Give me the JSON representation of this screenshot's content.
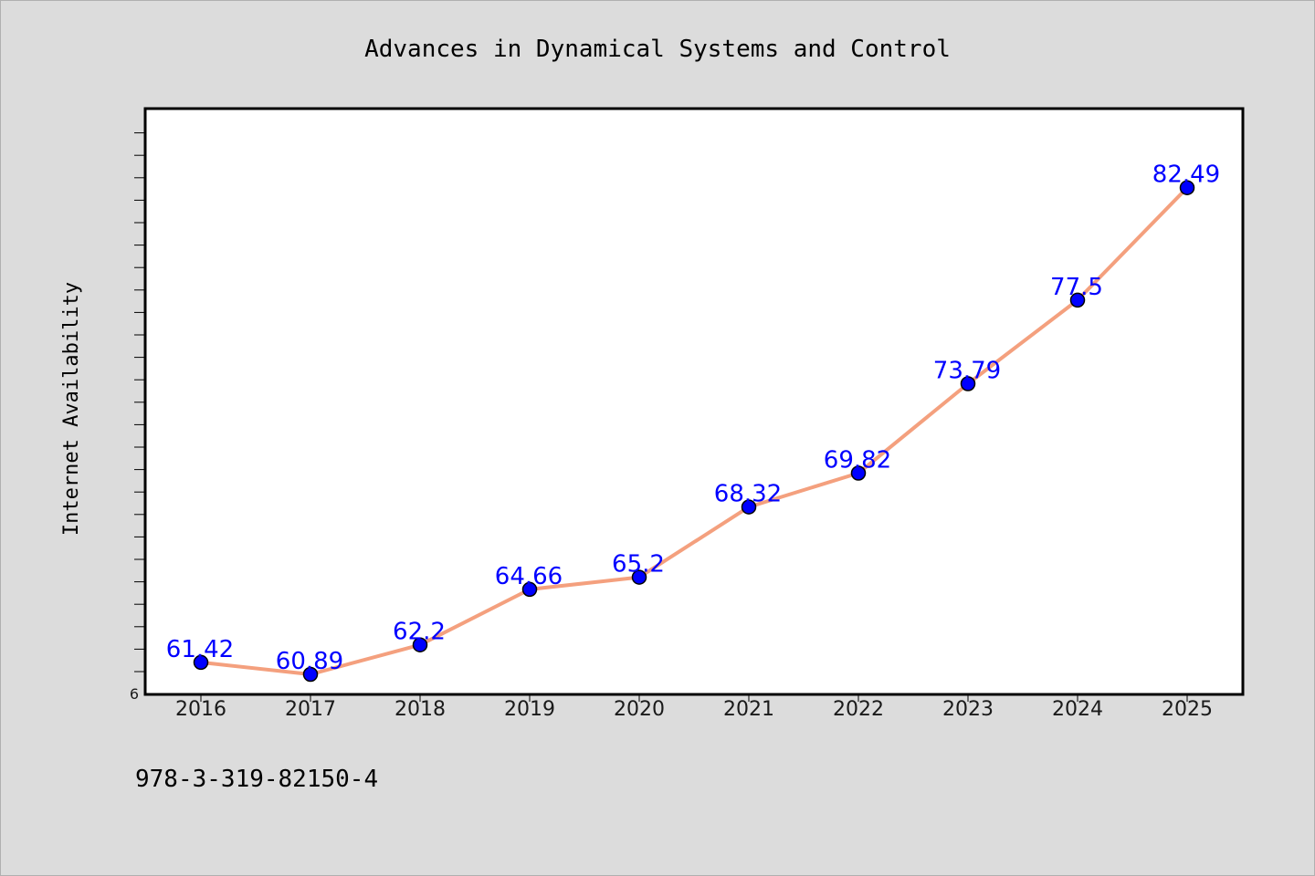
{
  "chart_data": {
    "type": "line",
    "title": "Advances in Dynamical Systems and Control",
    "xlabel": "",
    "ylabel": "Internet Availability",
    "categories": [
      "2016",
      "2017",
      "2018",
      "2019",
      "2020",
      "2021",
      "2022",
      "2023",
      "2024",
      "2025"
    ],
    "series": [
      {
        "values": [
          61.42,
          60.89,
          62.2,
          64.66,
          65.2,
          68.32,
          69.82,
          73.79,
          77.5,
          82.49
        ],
        "labels": [
          "61.42",
          "60.89",
          "62.2",
          "64.66",
          "65.2",
          "68.32",
          "69.82",
          "73.79",
          "77.5",
          "82.49"
        ]
      }
    ],
    "ylim": [
      60,
      86
    ],
    "y_tick_labels": [
      "6"
    ],
    "grid": false,
    "line_color": "#f4a07e",
    "marker_color": "#0000ff",
    "label_color": "#0000ff",
    "background_color": "#dcdcdc",
    "plot_background_color": "#ffffff"
  },
  "footer": {
    "isbn": "978-3-319-82150-4"
  }
}
